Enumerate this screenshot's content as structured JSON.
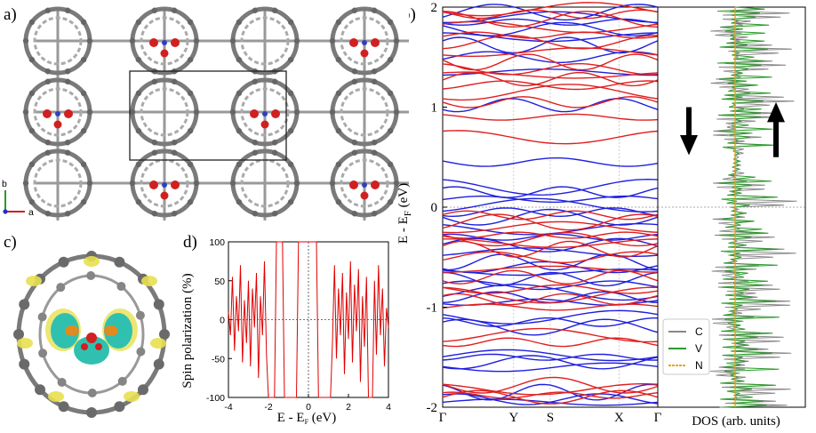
{
  "panels": {
    "a": {
      "letter": "a)",
      "axis_b": "b",
      "axis_a": "a"
    },
    "b": {
      "letter": "b)"
    },
    "c": {
      "letter": "c)"
    },
    "d": {
      "letter": "d)"
    }
  },
  "colors": {
    "spin_down": "#1f1fe0",
    "spin_up": "#e01f1f",
    "C": "#888888",
    "V": "#2a9a2a",
    "N": "#f0a020",
    "spin_pol": "#e00000"
  },
  "chart_data": [
    {
      "type": "line",
      "name_ref": "d",
      "xlabel": "E - E",
      "xlabel_sub": "F",
      "xlabel_unit": " (eV)",
      "ylabel": "Spin polarization (%)",
      "xlim": [
        -4,
        4
      ],
      "ylim": [
        -100,
        100
      ],
      "xticks": [
        -4,
        -2,
        0,
        2,
        4
      ],
      "yticks": [
        -100,
        -50,
        0,
        50,
        100
      ],
      "x": [
        -4.0,
        -3.9,
        -3.8,
        -3.7,
        -3.6,
        -3.5,
        -3.4,
        -3.3,
        -3.2,
        -3.1,
        -3.0,
        -2.9,
        -2.8,
        -2.7,
        -2.6,
        -2.5,
        -2.4,
        -2.3,
        -2.2,
        -2.1,
        -2.0,
        -1.9,
        -1.8,
        -1.7,
        -1.6,
        -1.5,
        -1.4,
        -1.3,
        -1.2,
        -1.1,
        -1.0,
        -0.9,
        -0.8,
        -0.7,
        -0.6,
        -0.5,
        -0.4,
        -0.3,
        -0.2,
        -0.1,
        0.0,
        0.1,
        0.2,
        0.3,
        0.4,
        0.5,
        0.6,
        0.7,
        0.8,
        0.9,
        1.0,
        1.1,
        1.2,
        1.3,
        1.4,
        1.5,
        1.6,
        1.7,
        1.8,
        1.9,
        2.0,
        2.1,
        2.2,
        2.3,
        2.4,
        2.5,
        2.6,
        2.7,
        2.8,
        2.9,
        3.0,
        3.1,
        3.2,
        3.3,
        3.4,
        3.5,
        3.6,
        3.7,
        3.8,
        3.9,
        4.0
      ],
      "y": [
        10,
        -20,
        55,
        -40,
        30,
        -15,
        70,
        -55,
        25,
        -30,
        50,
        -60,
        40,
        -10,
        60,
        -75,
        30,
        -20,
        75,
        -45,
        -100,
        -100,
        -100,
        -100,
        100,
        100,
        100,
        100,
        -100,
        -100,
        -100,
        -100,
        -100,
        -100,
        -100,
        100,
        100,
        100,
        100,
        100,
        100,
        100,
        100,
        100,
        100,
        -100,
        -100,
        -100,
        -100,
        -100,
        -100,
        -100,
        -30,
        70,
        -50,
        40,
        -20,
        60,
        -70,
        35,
        -25,
        75,
        -55,
        45,
        -15,
        65,
        -80,
        30,
        -35,
        55,
        -100,
        -100,
        -100,
        50,
        -45,
        70,
        -20,
        40,
        -60,
        15,
        -10
      ]
    },
    {
      "type": "line",
      "name_ref": "b-bands",
      "xticklabels": [
        "Γ",
        "Y",
        "S",
        "X",
        "Γ"
      ],
      "ylabel": "E - E",
      "ylabel_sub": "F",
      "ylabel_unit": " (eV)",
      "ylim": [
        -2,
        2
      ],
      "yticks": [
        -2,
        -1,
        0,
        1,
        2
      ],
      "series": [
        {
          "spin": "down",
          "levels": [
            -1.95,
            -1.92,
            -1.85,
            -1.6,
            -1.55,
            -1.5,
            -1.48,
            -1.2,
            -1.15,
            -1.1,
            -0.95,
            -0.9,
            -0.85,
            -0.78,
            -0.72,
            -0.65,
            -0.6,
            -0.55,
            -0.45,
            -0.38,
            -0.3,
            -0.22,
            -0.1,
            -0.05,
            0.02,
            0.08,
            0.15,
            0.2,
            0.45,
            1.02,
            1.35,
            1.5,
            1.62,
            1.7,
            1.78,
            1.85,
            1.9,
            1.95
          ]
        },
        {
          "spin": "up",
          "levels": [
            -1.9,
            -1.88,
            -1.82,
            -1.78,
            -1.35,
            -1.28,
            -1.0,
            -0.92,
            -0.88,
            -0.82,
            -0.7,
            -0.62,
            -0.5,
            -0.42,
            -0.36,
            -0.32,
            -0.28,
            -0.2,
            -0.15,
            -0.08,
            0.7,
            0.9,
            1.05,
            1.15,
            1.22,
            1.28,
            1.32,
            1.38,
            1.45,
            1.55,
            1.65,
            1.72,
            1.8,
            1.88,
            1.93,
            1.98
          ]
        }
      ]
    },
    {
      "type": "line",
      "name_ref": "b-dos",
      "xlabel": "DOS (arb. units)",
      "legend": [
        "C",
        "V",
        "N"
      ]
    }
  ]
}
